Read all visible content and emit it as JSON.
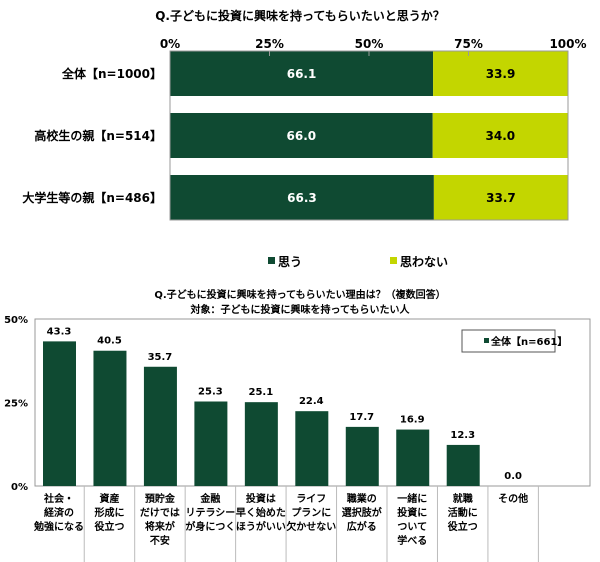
{
  "colors": {
    "agree": "#0f4a32",
    "disagree": "#c3d600",
    "frame": "#999999"
  },
  "chart_data": [
    {
      "type": "bar",
      "orientation": "horizontal-stacked",
      "title": "Q.子どもに投資に興味を持ってもらいたいと思うか？",
      "xlim": [
        0,
        100
      ],
      "tick_labels": [
        "0%",
        "25%",
        "50%",
        "75%",
        "100%"
      ],
      "categories": [
        "全体【n=1000】",
        "高校生の親【n=514】",
        "大学生等の親【n=486】"
      ],
      "series": [
        {
          "name": "思う",
          "values": [
            66.1,
            66.0,
            66.3
          ],
          "labels": [
            "66.1",
            "66.0",
            "66.3"
          ]
        },
        {
          "name": "思わない",
          "values": [
            33.9,
            34.0,
            33.7
          ],
          "labels": [
            "33.9",
            "34.0",
            "33.7"
          ]
        }
      ],
      "legend": "bottom"
    },
    {
      "type": "bar",
      "title": "Q.子どもに投資に興味を持ってもらいたい理由は？（複数回答）",
      "subtitle": "対象：子どもに投資に興味を持ってもらいたい人",
      "ylim": [
        0,
        50
      ],
      "tick_labels": [
        "0%",
        "25%",
        "50%"
      ],
      "categories": [
        [
          "社会・",
          "経済の",
          "勉強になる"
        ],
        [
          "資産",
          "形成に",
          "役立つ"
        ],
        [
          "預貯金",
          "だけでは",
          "将来が",
          "不安"
        ],
        [
          "金融",
          "リテラシー",
          "が身につく"
        ],
        [
          "投資は",
          "早く始めた",
          "ほうがいい"
        ],
        [
          "ライフ",
          "プランに",
          "欠かせない"
        ],
        [
          "職業の",
          "選択肢が",
          "広がる"
        ],
        [
          "一緒に",
          "投資に",
          "ついて",
          "学べる"
        ],
        [
          "就職",
          "活動に",
          "役立つ"
        ],
        [
          "その他"
        ]
      ],
      "series": [
        {
          "name": "全体【n=661】",
          "values": [
            43.3,
            40.5,
            35.7,
            25.3,
            25.1,
            22.4,
            17.7,
            16.9,
            12.3,
            0.0
          ],
          "labels": [
            "43.3",
            "40.5",
            "35.7",
            "25.3",
            "25.1",
            "22.4",
            "17.7",
            "16.9",
            "12.3",
            "0.0"
          ]
        }
      ],
      "legend": "top-right"
    }
  ]
}
